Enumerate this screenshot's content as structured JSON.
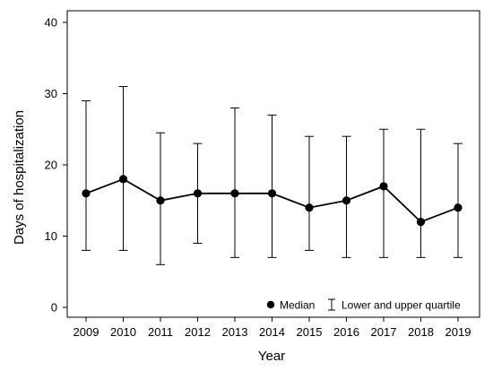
{
  "chart_data": {
    "type": "line",
    "xlabel": "Year",
    "ylabel": "Days of hospitalization",
    "ylim": [
      0,
      40
    ],
    "yticks": [
      0,
      10,
      20,
      30,
      40
    ],
    "x": [
      "2009",
      "2010",
      "2011",
      "2012",
      "2013",
      "2014",
      "2015",
      "2016",
      "2017",
      "2018",
      "2019"
    ],
    "series": [
      {
        "name": "Median",
        "values": [
          16,
          18,
          15,
          16,
          16,
          16,
          14,
          15,
          17,
          12,
          14
        ]
      }
    ],
    "error_bars": {
      "name": "Lower and upper quartile",
      "lower": [
        8,
        8,
        6,
        9,
        7,
        7,
        8,
        7,
        7,
        7,
        7
      ],
      "upper": [
        29,
        31,
        24.5,
        23,
        28,
        27,
        24,
        24,
        25,
        25,
        23
      ]
    },
    "grid": false,
    "legend_position": "bottom-right"
  }
}
